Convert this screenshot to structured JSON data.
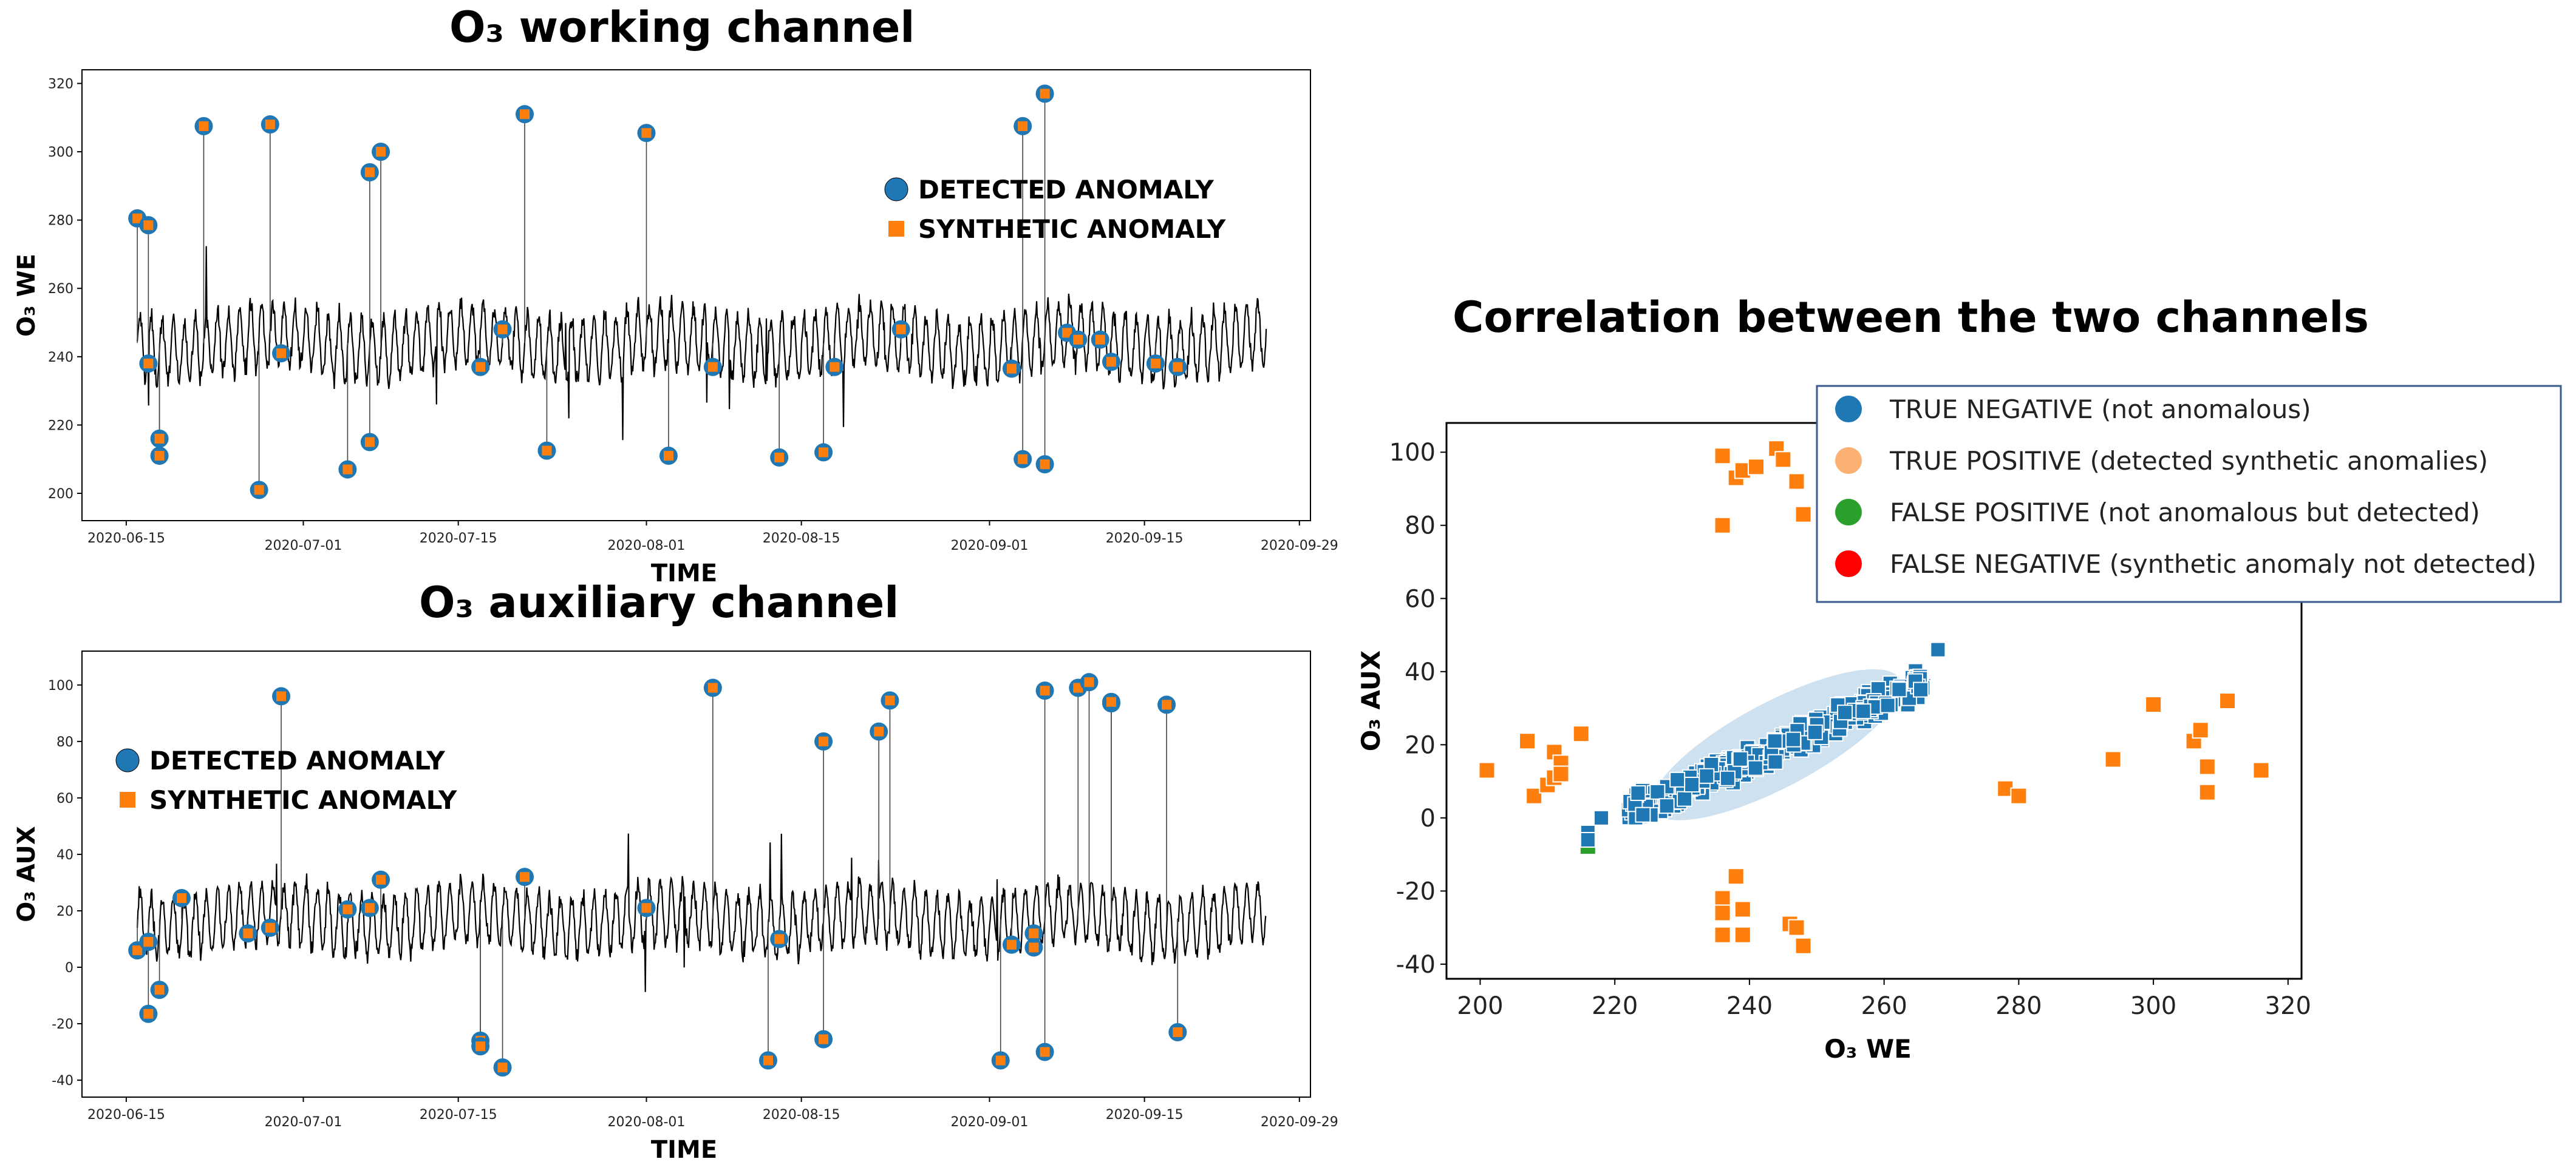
{
  "titles": {
    "working": "O₃ working channel",
    "auxiliary": "O₃ auxiliary channel",
    "correlation": "Correlation between the two channels"
  },
  "colors": {
    "detected": "#1f77b4",
    "synthetic": "#ff7f0e",
    "true_negative": "#1f77b4",
    "true_positive": "#fbb173",
    "false_positive": "#2ca02c",
    "false_negative": "#ff0000",
    "signal": "#000000"
  },
  "chart_data": [
    {
      "type": "line",
      "title": "O₃ working channel",
      "xlabel": "TIME",
      "ylabel": "O₃ WE",
      "ylim": [
        192,
        324
      ],
      "yticks": [
        200,
        220,
        240,
        260,
        280,
        300,
        320
      ],
      "xlim": [
        "2020-06-11",
        "2020-09-30"
      ],
      "xticks": [
        "2020-06-15",
        "2020-07-01",
        "2020-07-15",
        "2020-08-01",
        "2020-08-15",
        "2020-09-01",
        "2020-09-15",
        "2020-09-29"
      ],
      "signal": {
        "x_start": "2020-06-16",
        "x_end": "2020-09-26",
        "mean": 244,
        "amplitude": 12
      },
      "legend": {
        "placement": "upper-right",
        "entries": [
          "DETECTED ANOMALY",
          "SYNTHETIC ANOMALY"
        ]
      },
      "anomalies": [
        {
          "x": "2020-06-16",
          "y": 280.5
        },
        {
          "x": "2020-06-17",
          "y": 278.5
        },
        {
          "x": "2020-06-17",
          "y": 238
        },
        {
          "x": "2020-06-18",
          "y": 211
        },
        {
          "x": "2020-06-18",
          "y": 216
        },
        {
          "x": "2020-06-22",
          "y": 307.5
        },
        {
          "x": "2020-06-27",
          "y": 201
        },
        {
          "x": "2020-06-28",
          "y": 308
        },
        {
          "x": "2020-06-29",
          "y": 241
        },
        {
          "x": "2020-07-05",
          "y": 207
        },
        {
          "x": "2020-07-07",
          "y": 294
        },
        {
          "x": "2020-07-07",
          "y": 215
        },
        {
          "x": "2020-07-08",
          "y": 300
        },
        {
          "x": "2020-07-17",
          "y": 237
        },
        {
          "x": "2020-07-19",
          "y": 248
        },
        {
          "x": "2020-07-21",
          "y": 311
        },
        {
          "x": "2020-07-23",
          "y": 212.5
        },
        {
          "x": "2020-08-01",
          "y": 305.5
        },
        {
          "x": "2020-08-03",
          "y": 211
        },
        {
          "x": "2020-08-07",
          "y": 237
        },
        {
          "x": "2020-08-13",
          "y": 210.5
        },
        {
          "x": "2020-08-17",
          "y": 212
        },
        {
          "x": "2020-08-18",
          "y": 237
        },
        {
          "x": "2020-08-24",
          "y": 248
        },
        {
          "x": "2020-09-03",
          "y": 236.5
        },
        {
          "x": "2020-09-04",
          "y": 307.5
        },
        {
          "x": "2020-09-04",
          "y": 210
        },
        {
          "x": "2020-09-06",
          "y": 317
        },
        {
          "x": "2020-09-06",
          "y": 208.5
        },
        {
          "x": "2020-09-08",
          "y": 247
        },
        {
          "x": "2020-09-09",
          "y": 245
        },
        {
          "x": "2020-09-11",
          "y": 245
        },
        {
          "x": "2020-09-12",
          "y": 238.5
        },
        {
          "x": "2020-09-16",
          "y": 238
        },
        {
          "x": "2020-09-18",
          "y": 237
        }
      ]
    },
    {
      "type": "line",
      "title": "O₃ auxiliary channel",
      "xlabel": "TIME",
      "ylabel": "O₃ AUX",
      "ylim": [
        -46,
        112
      ],
      "yticks": [
        -40,
        -20,
        0,
        20,
        40,
        60,
        80,
        100
      ],
      "xlim": [
        "2020-06-11",
        "2020-09-30"
      ],
      "xticks": [
        "2020-06-15",
        "2020-07-01",
        "2020-07-15",
        "2020-08-01",
        "2020-08-15",
        "2020-09-01",
        "2020-09-15",
        "2020-09-29"
      ],
      "signal": {
        "x_start": "2020-06-16",
        "x_end": "2020-09-26",
        "mean": 17,
        "amplitude": 14
      },
      "legend": {
        "placement": "upper-left",
        "entries": [
          "DETECTED ANOMALY",
          "SYNTHETIC ANOMALY"
        ]
      },
      "anomalies": [
        {
          "x": "2020-06-16",
          "y": 6
        },
        {
          "x": "2020-06-17",
          "y": 9
        },
        {
          "x": "2020-06-17",
          "y": -16.5
        },
        {
          "x": "2020-06-18",
          "y": -8
        },
        {
          "x": "2020-06-20",
          "y": 24.5
        },
        {
          "x": "2020-06-26",
          "y": 12
        },
        {
          "x": "2020-06-28",
          "y": 14
        },
        {
          "x": "2020-06-29",
          "y": 96
        },
        {
          "x": "2020-07-05",
          "y": 20.5
        },
        {
          "x": "2020-07-07",
          "y": 21
        },
        {
          "x": "2020-07-08",
          "y": 31
        },
        {
          "x": "2020-07-17",
          "y": -26
        },
        {
          "x": "2020-07-17",
          "y": -28
        },
        {
          "x": "2020-07-19",
          "y": -35.5
        },
        {
          "x": "2020-07-21",
          "y": 32
        },
        {
          "x": "2020-08-01",
          "y": 21
        },
        {
          "x": "2020-08-07",
          "y": 99
        },
        {
          "x": "2020-08-12",
          "y": -33
        },
        {
          "x": "2020-08-13",
          "y": 10
        },
        {
          "x": "2020-08-17",
          "y": -25.5
        },
        {
          "x": "2020-08-17",
          "y": 80
        },
        {
          "x": "2020-08-22",
          "y": 83.5
        },
        {
          "x": "2020-08-23",
          "y": 94.5
        },
        {
          "x": "2020-09-02",
          "y": -33
        },
        {
          "x": "2020-09-03",
          "y": 8
        },
        {
          "x": "2020-09-05",
          "y": 7
        },
        {
          "x": "2020-09-05",
          "y": 12
        },
        {
          "x": "2020-09-06",
          "y": 98
        },
        {
          "x": "2020-09-06",
          "y": -30
        },
        {
          "x": "2020-09-09",
          "y": 99
        },
        {
          "x": "2020-09-10",
          "y": 101
        },
        {
          "x": "2020-09-12",
          "y": 93.5
        },
        {
          "x": "2020-09-12",
          "y": 94
        },
        {
          "x": "2020-09-17",
          "y": 93
        },
        {
          "x": "2020-09-18",
          "y": -23
        }
      ]
    },
    {
      "type": "scatter",
      "title": "Correlation between the two channels",
      "xlabel": "O₃ WE",
      "ylabel": "O₃ AUX",
      "xlim": [
        195,
        322
      ],
      "ylim": [
        -44,
        108
      ],
      "xticks": [
        200,
        220,
        240,
        260,
        280,
        300,
        320
      ],
      "yticks": [
        -40,
        -20,
        0,
        20,
        40,
        60,
        80,
        100
      ],
      "legend": {
        "placement": "upper-right",
        "entries": [
          "TRUE NEGATIVE (not anomalous)",
          "TRUE POSITIVE (detected synthetic anomalies)",
          "FALSE POSITIVE (not anomalous but detected)",
          "FALSE NEGATIVE (synthetic anomaly not detected)"
        ]
      },
      "true_negative_cloud": {
        "x_range": [
          216,
          268
        ],
        "y_range": [
          -6,
          46
        ],
        "approx_count": 350
      },
      "false_positive": [
        [
          216,
          -9
        ]
      ],
      "true_positive": [
        [
          236,
          99
        ],
        [
          238,
          93
        ],
        [
          239,
          95
        ],
        [
          241,
          96
        ],
        [
          244,
          101
        ],
        [
          245,
          98
        ],
        [
          247,
          92
        ],
        [
          248,
          83
        ],
        [
          236,
          80
        ],
        [
          201,
          13
        ],
        [
          207,
          21
        ],
        [
          208,
          6
        ],
        [
          210,
          9
        ],
        [
          211,
          11
        ],
        [
          211,
          18
        ],
        [
          212,
          15
        ],
        [
          212,
          12
        ],
        [
          215,
          23
        ],
        [
          236,
          -22
        ],
        [
          236,
          -26
        ],
        [
          236,
          -32
        ],
        [
          238,
          -16
        ],
        [
          239,
          -25
        ],
        [
          239,
          -32
        ],
        [
          246,
          -29
        ],
        [
          247,
          -30
        ],
        [
          248,
          -35
        ],
        [
          278,
          8
        ],
        [
          280,
          6
        ],
        [
          294,
          16
        ],
        [
          300,
          31
        ],
        [
          306,
          21
        ],
        [
          307,
          24
        ],
        [
          308,
          14
        ],
        [
          308,
          7
        ],
        [
          311,
          32
        ],
        [
          316,
          13
        ]
      ]
    }
  ]
}
